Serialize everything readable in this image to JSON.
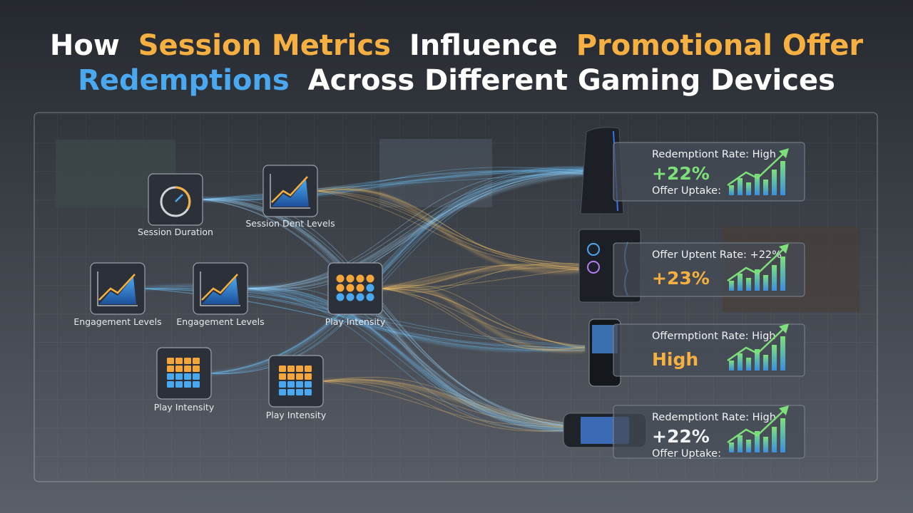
{
  "header": {
    "title": [
      {
        "text": "How",
        "color": "#ffffff"
      },
      {
        "text": "Session Metrics",
        "color": "#f5b041"
      },
      {
        "text": "Influence",
        "color": "#ffffff"
      },
      {
        "text": "Promotional Offer",
        "color": "#f5b041"
      },
      {
        "text": "Redemptions",
        "color": "#4aa8f0"
      },
      {
        "text": "Across Different Gaming Devices",
        "color": "#ffffff"
      }
    ]
  },
  "nodes": [
    {
      "label": "Session Duration"
    },
    {
      "label": "Session Dent Levels"
    },
    {
      "label": "Engagement Levels"
    },
    {
      "label": "Engagement Levels"
    },
    {
      "label": "Play Intensity"
    },
    {
      "label": "Play Intensity"
    },
    {
      "label": "Play Intensity"
    }
  ],
  "cards": [
    {
      "line1": "Redemptiont Rate: High",
      "big": "+22%",
      "big_color": "#7ee07a",
      "line2": "Offer Uptake:"
    },
    {
      "line1": "Offer Uptent Rate: +22%",
      "big": "+23%",
      "big_color": "#f5b041"
    },
    {
      "line1": "Offermptiont Rate:  High",
      "big": "High",
      "big_color": "#f5b041"
    },
    {
      "line1": "Redemptiont Rate: High",
      "big": "+22%",
      "big_color": "#f1f3f6",
      "line2": "Offer Uptake:"
    }
  ]
}
